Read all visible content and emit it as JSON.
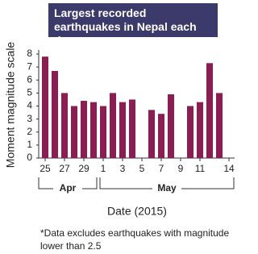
{
  "chart_data": {
    "type": "bar",
    "title": "Largest recorded earthquakes in Nepal each day",
    "y_label": "Moment magnitude scale",
    "x_label": "Date (2015)",
    "note": "*Data excludes earthquakes with magnitude lower than 2.5",
    "categories": [
      "25",
      null,
      "27",
      null,
      "29",
      null,
      "1",
      null,
      "3",
      null,
      "5",
      null,
      "7",
      null,
      "9",
      null,
      "11",
      null,
      null,
      "14"
    ],
    "values": [
      7.8,
      6.7,
      5.0,
      4.0,
      4.4,
      4.3,
      4.0,
      5.0,
      4.3,
      4.5,
      null,
      3.7,
      3.4,
      4.9,
      null,
      4.0,
      4.3,
      7.3,
      5.0,
      null
    ],
    "groups": [
      "Apr",
      "May"
    ],
    "color": "#8c1d52",
    "ylim": [
      0,
      8
    ],
    "yticks": [
      0,
      1,
      2,
      3,
      4,
      5,
      6,
      7,
      8
    ]
  }
}
